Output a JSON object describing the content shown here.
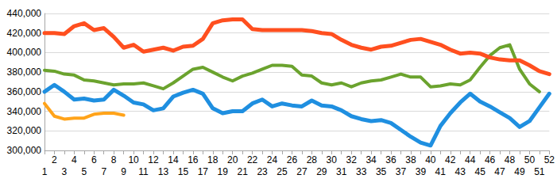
{
  "chart_data": {
    "type": "line",
    "categories": [
      1,
      2,
      3,
      4,
      5,
      6,
      7,
      8,
      9,
      10,
      11,
      12,
      13,
      14,
      15,
      16,
      17,
      18,
      19,
      20,
      21,
      22,
      23,
      24,
      25,
      26,
      27,
      28,
      29,
      30,
      31,
      32,
      33,
      34,
      35,
      36,
      37,
      38,
      39,
      40,
      41,
      42,
      43,
      44,
      45,
      46,
      47,
      48,
      49,
      50,
      51,
      52
    ],
    "series": [
      {
        "color": "#ff4f1f",
        "values": [
          420000,
          420000,
          419000,
          427000,
          430000,
          423000,
          425000,
          416000,
          405000,
          408000,
          401000,
          403000,
          405000,
          402000,
          406000,
          407000,
          414000,
          430000,
          433000,
          434000,
          434000,
          424000,
          423000,
          423000,
          423000,
          423000,
          423000,
          422000,
          420000,
          419000,
          413000,
          408000,
          405000,
          403000,
          406000,
          407000,
          410000,
          413000,
          414000,
          411000,
          408000,
          403000,
          399000,
          400000,
          399000,
          395000,
          393000,
          392000,
          392000,
          387000,
          381000,
          378000
        ]
      },
      {
        "color": "#6ba32e",
        "values": [
          382000,
          381000,
          378000,
          377000,
          372000,
          371000,
          369000,
          367000,
          368000,
          368000,
          369000,
          366000,
          363000,
          369000,
          376000,
          383000,
          385000,
          380000,
          375000,
          371000,
          376000,
          379000,
          383000,
          387000,
          387000,
          386000,
          377000,
          376000,
          369000,
          367000,
          369000,
          365000,
          369000,
          371000,
          372000,
          375000,
          378000,
          375000,
          375000,
          365000,
          366000,
          368000,
          367000,
          372000,
          385000,
          397000,
          405000,
          408000,
          383000,
          368000,
          360000,
          null
        ]
      },
      {
        "color": "#1f8fe0",
        "values": [
          360000,
          367000,
          360000,
          352000,
          353000,
          351000,
          352000,
          362000,
          356000,
          349000,
          347000,
          341000,
          343000,
          355000,
          359000,
          362000,
          358000,
          343000,
          338000,
          340000,
          340000,
          348000,
          352000,
          345000,
          348000,
          346000,
          345000,
          351000,
          346000,
          345000,
          341000,
          335000,
          332000,
          330000,
          331000,
          328000,
          321000,
          314000,
          308000,
          305000,
          325000,
          338000,
          349000,
          358000,
          350000,
          345000,
          339000,
          333000,
          324000,
          330000,
          344000,
          358000
        ]
      },
      {
        "color": "#ffa31a",
        "values": [
          348000,
          335000,
          332000,
          333000,
          333000,
          337000,
          338000,
          338000,
          336000,
          null,
          null,
          null,
          null,
          null,
          null,
          null,
          null,
          null,
          null,
          null,
          null,
          null,
          null,
          null,
          null,
          null,
          null,
          null,
          null,
          null,
          null,
          null,
          null,
          null,
          null,
          null,
          null,
          null,
          null,
          null,
          null,
          null,
          null,
          null,
          null,
          null,
          null,
          null,
          null,
          null,
          null,
          null
        ]
      }
    ],
    "ylim": [
      300000,
      440000
    ],
    "yticks": [
      {
        "value": 300000,
        "label": "300,000"
      },
      {
        "value": 320000,
        "label": "320,000"
      },
      {
        "value": 340000,
        "label": "340,000"
      },
      {
        "value": 360000,
        "label": "360,000"
      },
      {
        "value": 380000,
        "label": "380,000"
      },
      {
        "value": 400000,
        "label": "400,000"
      },
      {
        "value": 420000,
        "label": "420,000"
      },
      {
        "value": 440000,
        "label": "440,000"
      }
    ],
    "grid": true
  }
}
